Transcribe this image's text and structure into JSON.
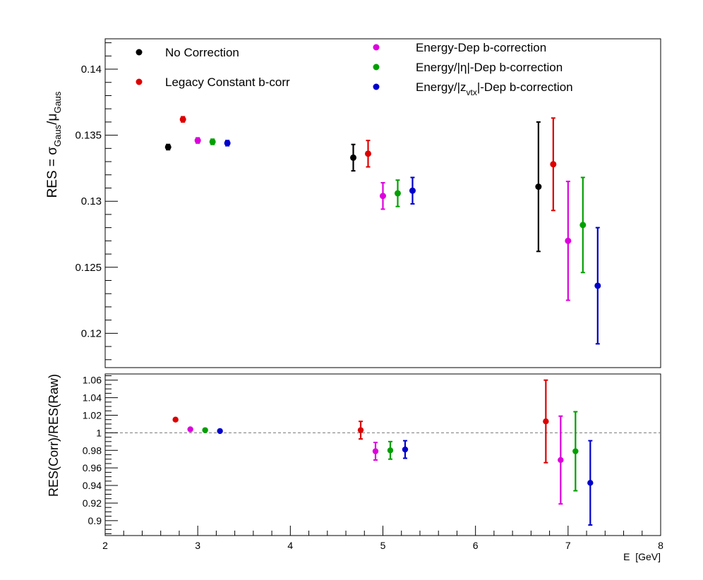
{
  "chart_data": [
    {
      "type": "scatter",
      "panel": "top",
      "title": "",
      "xlabel": "",
      "ylabel": "RES = σ_Gaus/μ_Gaus",
      "ylabel_parts": {
        "main": "RES = σ",
        "sub1": "Gaus",
        "slash": "/μ",
        "sub2": "Gaus"
      },
      "xlim": [
        2,
        8
      ],
      "ylim": [
        0.1174,
        0.1423
      ],
      "ytick_labels": [
        {
          "value": 0.12,
          "label": "0.12"
        },
        {
          "value": 0.125,
          "label": "0.125"
        },
        {
          "value": 0.13,
          "label": "0.13"
        },
        {
          "value": 0.135,
          "label": "0.135"
        },
        {
          "value": 0.14,
          "label": "0.14"
        }
      ],
      "series": [
        {
          "name": "No Correction",
          "color": "#000000",
          "points": [
            {
              "x": 2.68,
              "y": 0.1341,
              "err": 0.0002
            },
            {
              "x": 4.68,
              "y": 0.1333,
              "err": 0.001
            },
            {
              "x": 6.68,
              "y": 0.1311,
              "err": 0.0049
            }
          ]
        },
        {
          "name": "Legacy Constant b-corr",
          "color": "#dd0000",
          "points": [
            {
              "x": 2.84,
              "y": 0.1362,
              "err": 0.0002
            },
            {
              "x": 4.84,
              "y": 0.1336,
              "err": 0.001
            },
            {
              "x": 6.84,
              "y": 0.1328,
              "err": 0.0035
            }
          ]
        },
        {
          "name": "Energy-Dep b-correction",
          "color": "#dd00dd",
          "points": [
            {
              "x": 3.0,
              "y": 0.1346,
              "err": 0.0002
            },
            {
              "x": 5.0,
              "y": 0.1304,
              "err": 0.001
            },
            {
              "x": 7.0,
              "y": 0.127,
              "err": 0.0045
            }
          ]
        },
        {
          "name": "Energy/|η|-Dep b-correction",
          "color": "#00a000",
          "points": [
            {
              "x": 3.16,
              "y": 0.1345,
              "err": 0.0002
            },
            {
              "x": 5.16,
              "y": 0.1306,
              "err": 0.001
            },
            {
              "x": 7.16,
              "y": 0.1282,
              "err": 0.0036
            }
          ]
        },
        {
          "name": "Energy/|z_vtx|-Dep b-correction",
          "color": "#0000cc",
          "points": [
            {
              "x": 3.32,
              "y": 0.1344,
              "err": 0.0002
            },
            {
              "x": 5.32,
              "y": 0.1308,
              "err": 0.001
            },
            {
              "x": 7.32,
              "y": 0.1236,
              "err": 0.0044
            }
          ]
        }
      ],
      "legend": {
        "left": [
          {
            "label": "No Correction",
            "color": "#000000"
          },
          {
            "label": "Legacy Constant b-corr",
            "color": "#dd0000"
          }
        ],
        "right": [
          {
            "label": "Energy-Dep b-correction",
            "color": "#dd00dd"
          },
          {
            "parts": [
              "Energy/|η|-Dep b-correction"
            ],
            "color": "#00a000"
          },
          {
            "parts": [
              "Energy/|z",
              "vtx",
              "|-Dep b-correction"
            ],
            "color": "#0000cc"
          }
        ]
      }
    },
    {
      "type": "scatter",
      "panel": "bottom",
      "title": "",
      "xlabel": "E  [GeV]",
      "ylabel": "RES(Corr)/RES(Raw)",
      "xlim": [
        2,
        8
      ],
      "ylim": [
        0.883,
        1.067
      ],
      "reference_line": 1.0,
      "xtick_labels": [
        {
          "value": 2,
          "label": "2"
        },
        {
          "value": 3,
          "label": "3"
        },
        {
          "value": 4,
          "label": "4"
        },
        {
          "value": 5,
          "label": "5"
        },
        {
          "value": 6,
          "label": "6"
        },
        {
          "value": 7,
          "label": "7"
        },
        {
          "value": 8,
          "label": "8"
        }
      ],
      "ytick_labels": [
        {
          "value": 0.9,
          "label": "0.9"
        },
        {
          "value": 0.92,
          "label": "0.92"
        },
        {
          "value": 0.94,
          "label": "0.94"
        },
        {
          "value": 0.96,
          "label": "0.96"
        },
        {
          "value": 0.98,
          "label": "0.98"
        },
        {
          "value": 1.0,
          "label": "1"
        },
        {
          "value": 1.02,
          "label": "1.02"
        },
        {
          "value": 1.04,
          "label": "1.04"
        },
        {
          "value": 1.06,
          "label": "1.06"
        }
      ],
      "series": [
        {
          "name": "Legacy Constant b-corr",
          "color": "#dd0000",
          "points": [
            {
              "x": 2.76,
              "y": 1.015,
              "err": 0.0
            },
            {
              "x": 4.76,
              "y": 1.003,
              "err": 0.01
            },
            {
              "x": 6.76,
              "y": 1.013,
              "err": 0.047
            }
          ]
        },
        {
          "name": "Energy-Dep b-correction",
          "color": "#dd00dd",
          "points": [
            {
              "x": 2.92,
              "y": 1.004,
              "err": 0.0
            },
            {
              "x": 4.92,
              "y": 0.979,
              "err": 0.01
            },
            {
              "x": 6.92,
              "y": 0.969,
              "err": 0.05
            }
          ]
        },
        {
          "name": "Energy/|η|-Dep b-correction",
          "color": "#00a000",
          "points": [
            {
              "x": 3.08,
              "y": 1.003,
              "err": 0.0
            },
            {
              "x": 5.08,
              "y": 0.98,
              "err": 0.01
            },
            {
              "x": 7.08,
              "y": 0.979,
              "err": 0.045
            }
          ]
        },
        {
          "name": "Energy/|z_vtx|-Dep b-correction",
          "color": "#0000cc",
          "points": [
            {
              "x": 3.24,
              "y": 1.002,
              "err": 0.0
            },
            {
              "x": 5.24,
              "y": 0.981,
              "err": 0.01
            },
            {
              "x": 7.24,
              "y": 0.943,
              "err": 0.048
            }
          ]
        }
      ]
    }
  ]
}
